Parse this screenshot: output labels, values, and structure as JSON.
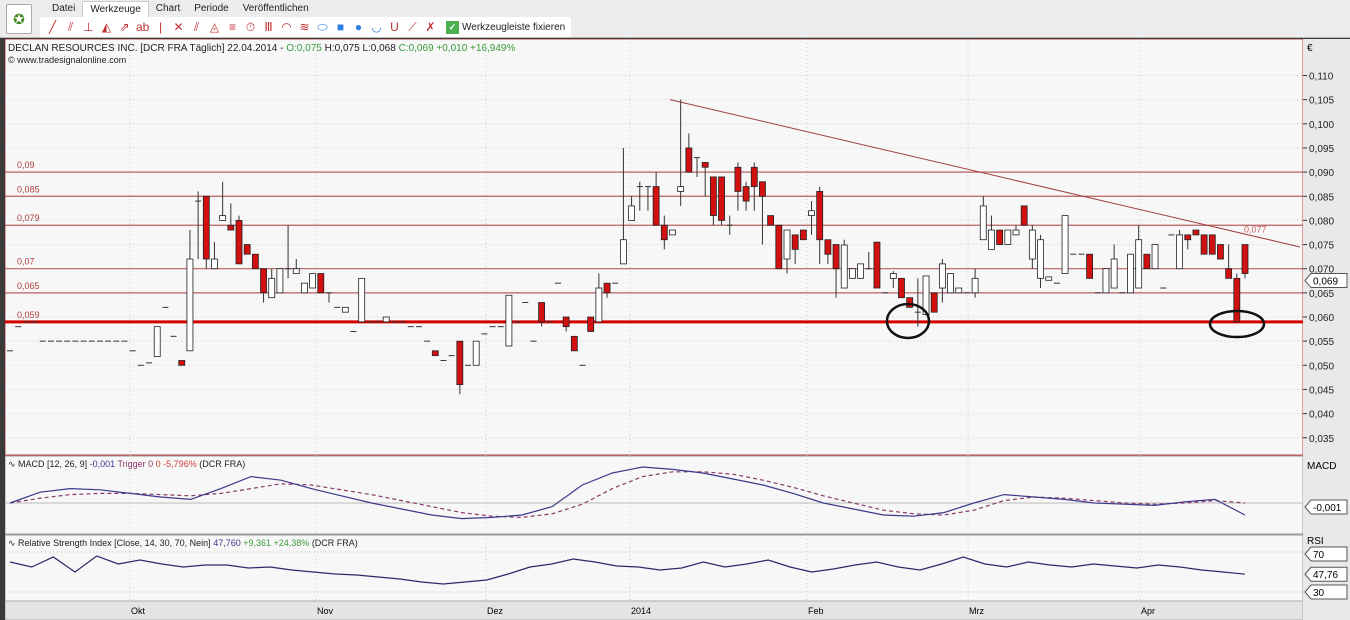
{
  "menu": {
    "items": [
      "Datei",
      "Werkzeuge",
      "Chart",
      "Periode",
      "Veröffentlichen"
    ],
    "active": 1
  },
  "toolbar": {
    "tools": [
      "line-tool",
      "parallel-tool",
      "horizontal-tool",
      "fibonacci-tool",
      "arrow-tool",
      "text-tool",
      "vertical-tool",
      "pitchfork-tool",
      "channel-tool",
      "gann-tool",
      "levels-tool",
      "cycles-tool",
      "fan-tool",
      "arc-tool",
      "speedline-tool",
      "ellipse-tool",
      "rectangle-tool",
      "circle-tool",
      "bowl-tool",
      "magnet-tool",
      "auto-trend-tool",
      "delete-tool"
    ],
    "tool_glyphs": [
      "╱",
      "⫽",
      "⊥",
      "◭",
      "⇗",
      "ab",
      "|",
      "✕",
      "⫽",
      "◬",
      "≡",
      "⏱",
      "Ⅲ",
      "◠",
      "≋",
      "⬭",
      "■",
      "●",
      "◡",
      "U",
      "⟋",
      "✗"
    ],
    "fix_label": "Werkzeugleiste fixieren"
  },
  "main_header": {
    "title": "DECLAN RESOURCES INC. [DCR FRA  Täglich] 22.04.2014 -",
    "open": "O:0,075",
    "high": "H:0,075",
    "low": "L:0,068",
    "close": "C:0,069 +0,010 +16,949%",
    "source": "www.tradesignalonline.com"
  },
  "macd_header": {
    "label": "MACD [12, 26, 9]",
    "value": "-0,001",
    "trigger": "Trigger 0",
    "change": "0 -5,796%",
    "symbol": "(DCR FRA)",
    "axis_label": "MACD",
    "current": "-0,001",
    "zero": "0"
  },
  "rsi_header": {
    "label": "Relative Strength Index [Close, 14, 30, 70, Nein]",
    "value": "47,760",
    "change": "+9,361 +24,38%",
    "symbol": "(DCR FRA)",
    "axis_label": "RSI",
    "current": "47,76",
    "upper": "70",
    "lower": "30"
  },
  "colors": {
    "up": "#ffffff",
    "down": "#d21010",
    "level": "#b86060",
    "support": "#d40000",
    "macd": "#3a3a8a",
    "trigger": "#8a3a6a",
    "rsi": "#2a2a6a"
  },
  "chart_data": {
    "type": "candlestick",
    "currency": "€",
    "ylim": [
      0.031,
      0.116
    ],
    "yticks": [
      "0,110",
      "0,105",
      "0,100",
      "0,095",
      "0,090",
      "0,085",
      "0,080",
      "0,075",
      "0,070",
      "0,065",
      "0,060",
      "0,055",
      "0,050",
      "0,045",
      "0,040",
      "0,035"
    ],
    "last_price": "0,069",
    "xticks": [
      "Okt",
      "Nov",
      "Dez",
      "2014",
      "Feb",
      "Mrz",
      "Apr"
    ],
    "levels": [
      {
        "value": 0.09,
        "label": "0,09"
      },
      {
        "value": 0.085,
        "label": "0,085"
      },
      {
        "value": 0.079,
        "label": "0,079"
      },
      {
        "value": 0.07,
        "label": "0,07"
      },
      {
        "value": 0.065,
        "label": "0,065"
      },
      {
        "value": 0.059,
        "label": "0,059",
        "support": true
      }
    ],
    "trendline": {
      "from": 0.105,
      "to": 0.0745,
      "label": "0,077"
    },
    "candles": [
      [
        0.053,
        0.053,
        0.053,
        0.053
      ],
      [
        0.058,
        0.058,
        0.058,
        0.058
      ],
      [
        0.059,
        0.059,
        0.059,
        0.059
      ],
      [
        0.059,
        0.059,
        0.059,
        0.059
      ],
      [
        0.055,
        0.055,
        0.055,
        0.055
      ],
      [
        0.055,
        0.055,
        0.055,
        0.055
      ],
      [
        0.055,
        0.055,
        0.055,
        0.055
      ],
      [
        0.055,
        0.055,
        0.055,
        0.055
      ],
      [
        0.055,
        0.055,
        0.055,
        0.055
      ],
      [
        0.055,
        0.055,
        0.055,
        0.055
      ],
      [
        0.055,
        0.055,
        0.055,
        0.055
      ],
      [
        0.055,
        0.055,
        0.055,
        0.055
      ],
      [
        0.055,
        0.055,
        0.055,
        0.055
      ],
      [
        0.055,
        0.055,
        0.055,
        0.055
      ],
      [
        0.055,
        0.055,
        0.055,
        0.055
      ],
      [
        0.053,
        0.053,
        0.053,
        0.053
      ],
      [
        0.05,
        0.05,
        0.05,
        0.05
      ],
      [
        0.0505,
        0.0505,
        0.0505,
        0.0505
      ],
      [
        0.0518,
        0.058,
        0.0518,
        0.058
      ],
      [
        0.062,
        0.062,
        0.062,
        0.062
      ],
      [
        0.056,
        0.056,
        0.056,
        0.056
      ],
      [
        0.051,
        0.051,
        0.05,
        0.05
      ],
      [
        0.053,
        0.078,
        0.053,
        0.072
      ],
      [
        0.084,
        0.086,
        0.072,
        0.084
      ],
      [
        0.085,
        0.085,
        0.07,
        0.072
      ],
      [
        0.07,
        0.0755,
        0.07,
        0.072
      ],
      [
        0.08,
        0.088,
        0.08,
        0.081
      ],
      [
        0.079,
        0.0835,
        0.078,
        0.078
      ],
      [
        0.08,
        0.081,
        0.071,
        0.071
      ],
      [
        0.075,
        0.075,
        0.073,
        0.073
      ],
      [
        0.073,
        0.073,
        0.07,
        0.07
      ],
      [
        0.07,
        0.07,
        0.063,
        0.065
      ],
      [
        0.064,
        0.07,
        0.064,
        0.068
      ],
      [
        0.065,
        0.07,
        0.065,
        0.07
      ],
      [
        0.07,
        0.079,
        0.068,
        0.07
      ],
      [
        0.069,
        0.072,
        0.069,
        0.07
      ],
      [
        0.065,
        0.067,
        0.065,
        0.067
      ],
      [
        0.066,
        0.069,
        0.066,
        0.069
      ],
      [
        0.069,
        0.069,
        0.065,
        0.065
      ],
      [
        0.065,
        0.065,
        0.063,
        0.065
      ],
      [
        0.062,
        0.062,
        0.062,
        0.062
      ],
      [
        0.061,
        0.062,
        0.061,
        0.062
      ],
      [
        0.057,
        0.057,
        0.057,
        0.057
      ],
      [
        0.059,
        0.068,
        0.059,
        0.068
      ],
      [
        0.059,
        0.059,
        0.059,
        0.059
      ],
      [
        0.059,
        0.059,
        0.059,
        0.059
      ],
      [
        0.059,
        0.06,
        0.059,
        0.06
      ],
      [
        0.059,
        0.059,
        0.059,
        0.059
      ],
      [
        0.059,
        0.059,
        0.059,
        0.059
      ],
      [
        0.058,
        0.058,
        0.058,
        0.058
      ],
      [
        0.058,
        0.058,
        0.058,
        0.058
      ],
      [
        0.055,
        0.055,
        0.055,
        0.055
      ],
      [
        0.053,
        0.053,
        0.052,
        0.052
      ],
      [
        0.051,
        0.051,
        0.051,
        0.051
      ],
      [
        0.052,
        0.052,
        0.052,
        0.052
      ],
      [
        0.055,
        0.055,
        0.044,
        0.046
      ],
      [
        0.05,
        0.05,
        0.05,
        0.05
      ],
      [
        0.05,
        0.055,
        0.05,
        0.055
      ],
      [
        0.0565,
        0.0565,
        0.0565,
        0.0565
      ],
      [
        0.058,
        0.058,
        0.058,
        0.058
      ],
      [
        0.058,
        0.058,
        0.058,
        0.058
      ],
      [
        0.054,
        0.0645,
        0.054,
        0.0645
      ],
      [
        0.059,
        0.059,
        0.059,
        0.059
      ],
      [
        0.063,
        0.063,
        0.063,
        0.063
      ],
      [
        0.055,
        0.055,
        0.055,
        0.055
      ],
      [
        0.063,
        0.063,
        0.058,
        0.059
      ],
      [
        0.059,
        0.059,
        0.059,
        0.059
      ],
      [
        0.067,
        0.067,
        0.067,
        0.067
      ],
      [
        0.06,
        0.06,
        0.057,
        0.058
      ],
      [
        0.056,
        0.056,
        0.053,
        0.053
      ],
      [
        0.05,
        0.05,
        0.05,
        0.05
      ],
      [
        0.06,
        0.06,
        0.057,
        0.057
      ],
      [
        0.059,
        0.069,
        0.059,
        0.066
      ],
      [
        0.067,
        0.067,
        0.064,
        0.065
      ],
      [
        0.067,
        0.067,
        0.067,
        0.067
      ],
      [
        0.071,
        0.095,
        0.071,
        0.076
      ],
      [
        0.08,
        0.085,
        0.08,
        0.083
      ],
      [
        0.087,
        0.088,
        0.082,
        0.087
      ],
      [
        0.087,
        0.087,
        0.082,
        0.087
      ],
      [
        0.087,
        0.09,
        0.079,
        0.079
      ],
      [
        0.079,
        0.081,
        0.074,
        0.076
      ],
      [
        0.077,
        0.078,
        0.077,
        0.078
      ],
      [
        0.086,
        0.105,
        0.083,
        0.087
      ],
      [
        0.095,
        0.098,
        0.09,
        0.09
      ],
      [
        0.093,
        0.093,
        0.089,
        0.093
      ],
      [
        0.092,
        0.092,
        0.085,
        0.091
      ],
      [
        0.089,
        0.089,
        0.079,
        0.081
      ],
      [
        0.089,
        0.089,
        0.079,
        0.08
      ],
      [
        0.079,
        0.081,
        0.077,
        0.079
      ],
      [
        0.091,
        0.092,
        0.082,
        0.086
      ],
      [
        0.087,
        0.088,
        0.082,
        0.084
      ],
      [
        0.091,
        0.092,
        0.082,
        0.087
      ],
      [
        0.088,
        0.088,
        0.075,
        0.085
      ],
      [
        0.081,
        0.081,
        0.079,
        0.079
      ],
      [
        0.079,
        0.079,
        0.07,
        0.07
      ],
      [
        0.072,
        0.078,
        0.069,
        0.078
      ],
      [
        0.077,
        0.077,
        0.071,
        0.074
      ],
      [
        0.078,
        0.078,
        0.076,
        0.076
      ],
      [
        0.081,
        0.084,
        0.077,
        0.082
      ],
      [
        0.086,
        0.087,
        0.071,
        0.076
      ],
      [
        0.076,
        0.076,
        0.071,
        0.073
      ],
      [
        0.075,
        0.075,
        0.064,
        0.07
      ],
      [
        0.066,
        0.076,
        0.066,
        0.0749
      ],
      [
        0.068,
        0.07,
        0.068,
        0.07
      ],
      [
        0.068,
        0.071,
        0.068,
        0.071
      ],
      [
        0.07,
        0.0735,
        0.07,
        0.07
      ],
      [
        0.0755,
        0.0755,
        0.066,
        0.066
      ],
      [
        0.065,
        0.065,
        0.065,
        0.065
      ],
      [
        0.068,
        0.0695,
        0.066,
        0.069
      ],
      [
        0.068,
        0.068,
        0.064,
        0.064
      ],
      [
        0.064,
        0.064,
        0.062,
        0.062
      ],
      [
        0.061,
        0.068,
        0.058,
        0.061
      ],
      [
        0.0605,
        0.0685,
        0.0605,
        0.0685
      ],
      [
        0.065,
        0.065,
        0.061,
        0.061
      ],
      [
        0.066,
        0.072,
        0.063,
        0.071
      ],
      [
        0.065,
        0.069,
        0.065,
        0.069
      ],
      [
        0.065,
        0.066,
        0.065,
        0.066
      ],
      [
        0.065,
        0.065,
        0.065,
        0.065
      ],
      [
        0.065,
        0.07,
        0.064,
        0.068
      ],
      [
        0.076,
        0.085,
        0.076,
        0.083
      ],
      [
        0.074,
        0.081,
        0.074,
        0.078
      ],
      [
        0.078,
        0.078,
        0.075,
        0.075
      ],
      [
        0.075,
        0.078,
        0.075,
        0.078
      ],
      [
        0.077,
        0.079,
        0.077,
        0.078
      ],
      [
        0.083,
        0.083,
        0.079,
        0.079
      ],
      [
        0.072,
        0.079,
        0.07,
        0.078
      ],
      [
        0.068,
        0.077,
        0.066,
        0.076
      ],
      [
        0.0676,
        0.0683,
        0.0676,
        0.0683
      ],
      [
        0.067,
        0.067,
        0.067,
        0.067
      ],
      [
        0.069,
        0.081,
        0.069,
        0.081
      ],
      [
        0.073,
        0.073,
        0.073,
        0.073
      ],
      [
        0.073,
        0.073,
        0.073,
        0.073
      ],
      [
        0.073,
        0.073,
        0.068,
        0.068
      ],
      [
        0.065,
        0.065,
        0.065,
        0.065
      ],
      [
        0.065,
        0.07,
        0.065,
        0.07
      ],
      [
        0.066,
        0.075,
        0.066,
        0.072
      ],
      [
        0.065,
        0.065,
        0.065,
        0.065
      ],
      [
        0.065,
        0.073,
        0.065,
        0.073
      ],
      [
        0.066,
        0.079,
        0.066,
        0.076
      ],
      [
        0.073,
        0.073,
        0.07,
        0.07
      ],
      [
        0.07,
        0.075,
        0.07,
        0.075
      ],
      [
        0.066,
        0.066,
        0.066,
        0.066
      ],
      [
        0.077,
        0.077,
        0.077,
        0.077
      ],
      [
        0.07,
        0.078,
        0.07,
        0.077
      ],
      [
        0.077,
        0.077,
        0.074,
        0.076
      ],
      [
        0.078,
        0.078,
        0.077,
        0.077
      ],
      [
        0.077,
        0.077,
        0.073,
        0.073
      ],
      [
        0.077,
        0.077,
        0.073,
        0.073
      ],
      [
        0.075,
        0.075,
        0.072,
        0.072
      ],
      [
        0.07,
        0.075,
        0.068,
        0.068
      ],
      [
        0.068,
        0.069,
        0.059,
        0.059
      ],
      [
        0.075,
        0.075,
        0.068,
        0.069
      ]
    ],
    "macd": [
      0,
      0.0009,
      0.0012,
      0.0011,
      0.0008,
      0.0005,
      0.0003,
      0.0012,
      0.0022,
      0.0019,
      0.0012,
      0.0006,
      0,
      -0.0005,
      -0.001,
      -0.0013,
      -0.0012,
      -0.001,
      -0.0003,
      0.0015,
      0.0025,
      0.003,
      0.0028,
      0.0025,
      0.002,
      0.0015,
      0.0008,
      0,
      -0.0005,
      -0.001,
      -0.0011,
      -0.0008,
      0,
      0.0007,
      0.0005,
      0.0003,
      0,
      -0.0001,
      -0.0002,
      0.0001,
      0.0003,
      -0.001
    ],
    "trigger": [
      0,
      0.0004,
      0.0007,
      0.0008,
      0.0008,
      0.0007,
      0.0006,
      0.0008,
      0.0012,
      0.0016,
      0.0015,
      0.0011,
      0.0007,
      0.0002,
      -0.0003,
      -0.0008,
      -0.0011,
      -0.0012,
      -0.0009,
      -0.0001,
      0.0012,
      0.0022,
      0.0026,
      0.0026,
      0.0024,
      0.0019,
      0.0013,
      0.0006,
      0,
      -0.0006,
      -0.0009,
      -0.001,
      -0.0006,
      0.0002,
      0.0005,
      0.0004,
      0.0002,
      0,
      -0.0001,
      0,
      0.0002,
      0
    ],
    "rsi": [
      60,
      55,
      65,
      50,
      66,
      58,
      62,
      58,
      55,
      57,
      57,
      54,
      55,
      52,
      50,
      48,
      47,
      45,
      43,
      40,
      38,
      40,
      42,
      48,
      55,
      58,
      63,
      60,
      56,
      55,
      52,
      54,
      60,
      55,
      58,
      62,
      55,
      50,
      53,
      57,
      60,
      55,
      52,
      58,
      65,
      58,
      55,
      60,
      57,
      55,
      58,
      56,
      54,
      57,
      55,
      52,
      50,
      47.76
    ]
  }
}
